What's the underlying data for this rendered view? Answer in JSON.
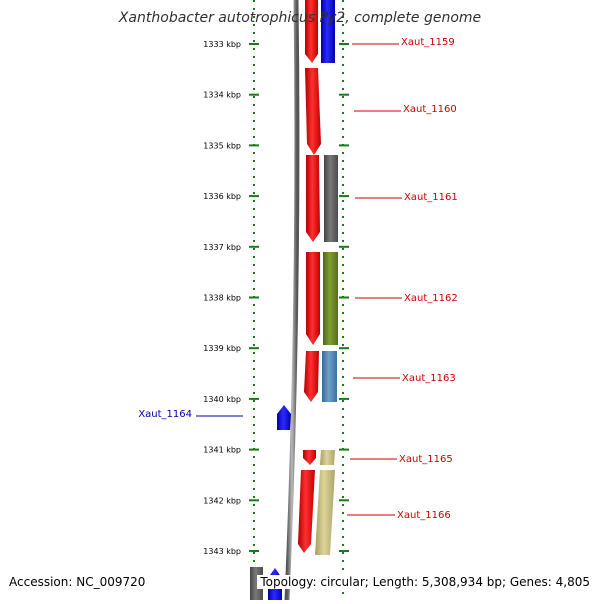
{
  "title": "Xanthobacter autotrophicus Py2, complete genome",
  "footer": {
    "accession": "Accession: NC_009720",
    "summary": "Topology: circular; Length: 5,308,934 bp; Genes: 4,805"
  },
  "scale_labels": [
    "1333 kbp",
    "1334 kbp",
    "1335 kbp",
    "1336 kbp",
    "1337 kbp",
    "1338 kbp",
    "1339 kbp",
    "1340 kbp",
    "1341 kbp",
    "1342 kbp",
    "1343 kbp"
  ],
  "genes": [
    {
      "name": "Xaut_1159",
      "strand": "forward"
    },
    {
      "name": "Xaut_1160",
      "strand": "forward"
    },
    {
      "name": "Xaut_1161",
      "strand": "forward"
    },
    {
      "name": "Xaut_1162",
      "strand": "forward"
    },
    {
      "name": "Xaut_1163",
      "strand": "forward"
    },
    {
      "name": "Xaut_1164",
      "strand": "reverse"
    },
    {
      "name": "Xaut_1165",
      "strand": "forward"
    },
    {
      "name": "Xaut_1166",
      "strand": "forward"
    }
  ],
  "colors": {
    "forward_gene": "#ff0000",
    "reverse_gene": "#0000ff",
    "forward_label": "#cc0000",
    "reverse_label": "#0000aa",
    "scale_ticks": "#1a7a1a",
    "backbone": "#808080",
    "cog_blue": "#0000ff",
    "cog_gray": "#666666",
    "cog_olive": "#6b8e23",
    "cog_steelblue": "#4682b4",
    "cog_khaki": "#bdb76b"
  }
}
